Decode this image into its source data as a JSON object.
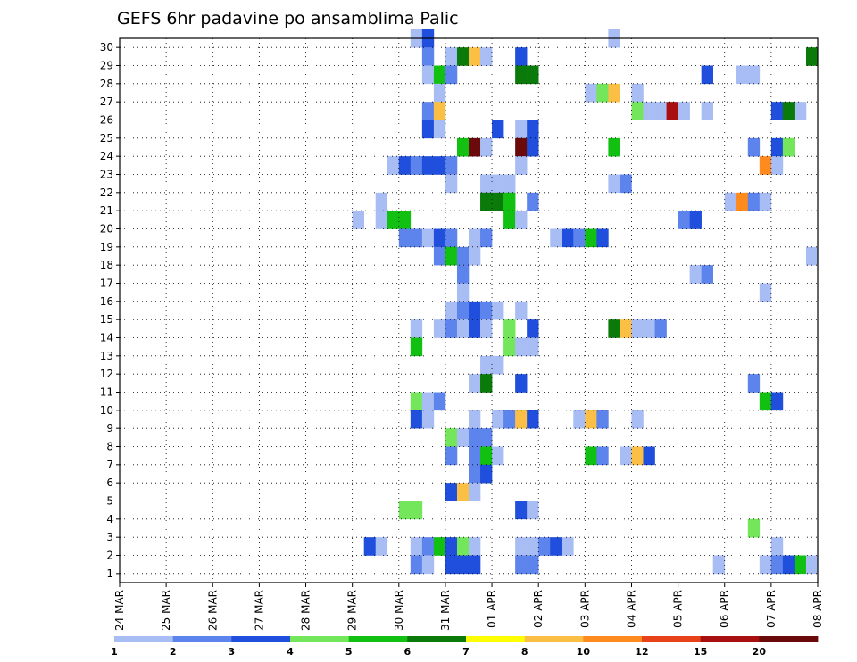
{
  "chart_data": {
    "type": "heatmap",
    "title": "GEFS 6hr padavine po ansamblima Palic",
    "xlabel": "",
    "ylabel": "",
    "x_ticks": [
      "24 MAR",
      "25 MAR",
      "26 MAR",
      "27 MAR",
      "28 MAR",
      "29 MAR",
      "30 MAR",
      "31 MAR",
      "01 APR",
      "02 APR",
      "03 APR",
      "04 APR",
      "05 APR",
      "06 APR",
      "07 APR",
      "08 APR"
    ],
    "y_ticks": [
      1,
      2,
      3,
      4,
      5,
      6,
      7,
      8,
      9,
      10,
      11,
      12,
      13,
      14,
      15,
      16,
      17,
      18,
      19,
      20,
      21,
      22,
      23,
      24,
      25,
      26,
      27,
      28,
      29,
      30
    ],
    "xlim": [
      "24 MAR 00",
      "08 APR 00"
    ],
    "ylim": [
      0,
      30
    ],
    "x_step_hours": 6,
    "grid": true,
    "legend": {
      "placement": "bottom",
      "bounds": [
        "1",
        "2",
        "3",
        "4",
        "5",
        "6",
        "7",
        "8",
        "10",
        "12",
        "15",
        "20"
      ],
      "colors": [
        "#a9bdf5",
        "#5d84ec",
        "#1f4fdc",
        "#73e65c",
        "#11c011",
        "#0a7a0a",
        "#ffff00",
        "#fbbf45",
        "#ff8a1d",
        "#e8421a",
        "#a81010",
        "#6b0a0a"
      ]
    },
    "cells": [
      {
        "x": "30 MAR 06",
        "member": 30,
        "level": 1
      },
      {
        "x": "30 MAR 12",
        "member": 30,
        "level": 3
      },
      {
        "x": "03 APR 12",
        "member": 30,
        "level": 1
      },
      {
        "x": "30 MAR 12",
        "member": 29,
        "level": 2
      },
      {
        "x": "31 MAR 00",
        "member": 29,
        "level": 1
      },
      {
        "x": "31 MAR 06",
        "member": 29,
        "level": 6
      },
      {
        "x": "31 MAR 12",
        "member": 29,
        "level": 8
      },
      {
        "x": "31 MAR 18",
        "member": 29,
        "level": 1
      },
      {
        "x": "01 APR 12",
        "member": 29,
        "level": 3
      },
      {
        "x": "07 APR 18",
        "member": 29,
        "level": 6
      },
      {
        "x": "30 MAR 12",
        "member": 28,
        "level": 1
      },
      {
        "x": "30 MAR 18",
        "member": 28,
        "level": 5
      },
      {
        "x": "31 MAR 00",
        "member": 28,
        "level": 2
      },
      {
        "x": "01 APR 12",
        "member": 28,
        "level": 6
      },
      {
        "x": "01 APR 18",
        "member": 28,
        "level": 6
      },
      {
        "x": "05 APR 12",
        "member": 28,
        "level": 3
      },
      {
        "x": "06 APR 06",
        "member": 28,
        "level": 1
      },
      {
        "x": "06 APR 12",
        "member": 28,
        "level": 1
      },
      {
        "x": "30 MAR 18",
        "member": 27,
        "level": 1
      },
      {
        "x": "03 APR 00",
        "member": 27,
        "level": 1
      },
      {
        "x": "03 APR 06",
        "member": 27,
        "level": 4
      },
      {
        "x": "03 APR 12",
        "member": 27,
        "level": 8
      },
      {
        "x": "04 APR 00",
        "member": 27,
        "level": 1
      },
      {
        "x": "30 MAR 12",
        "member": 26,
        "level": 2
      },
      {
        "x": "30 MAR 18",
        "member": 26,
        "level": 8
      },
      {
        "x": "04 APR 00",
        "member": 26,
        "level": 4
      },
      {
        "x": "04 APR 06",
        "member": 26,
        "level": 1
      },
      {
        "x": "04 APR 12",
        "member": 26,
        "level": 1
      },
      {
        "x": "04 APR 18",
        "member": 26,
        "level": 11
      },
      {
        "x": "05 APR 00",
        "member": 26,
        "level": 1
      },
      {
        "x": "05 APR 12",
        "member": 26,
        "level": 1
      },
      {
        "x": "07 APR 00",
        "member": 26,
        "level": 3
      },
      {
        "x": "07 APR 06",
        "member": 26,
        "level": 6
      },
      {
        "x": "07 APR 12",
        "member": 26,
        "level": 1
      },
      {
        "x": "30 MAR 12",
        "member": 25,
        "level": 3
      },
      {
        "x": "30 MAR 18",
        "member": 25,
        "level": 1
      },
      {
        "x": "01 APR 00",
        "member": 25,
        "level": 3
      },
      {
        "x": "01 APR 12",
        "member": 25,
        "level": 1
      },
      {
        "x": "01 APR 18",
        "member": 25,
        "level": 3
      },
      {
        "x": "31 MAR 06",
        "member": 24,
        "level": 5
      },
      {
        "x": "31 MAR 12",
        "member": 24,
        "level": 12
      },
      {
        "x": "31 MAR 18",
        "member": 24,
        "level": 1
      },
      {
        "x": "01 APR 12",
        "member": 24,
        "level": 12
      },
      {
        "x": "01 APR 18",
        "member": 24,
        "level": 3
      },
      {
        "x": "03 APR 12",
        "member": 24,
        "level": 5
      },
      {
        "x": "06 APR 12",
        "member": 24,
        "level": 2
      },
      {
        "x": "07 APR 00",
        "member": 24,
        "level": 3
      },
      {
        "x": "07 APR 06",
        "member": 24,
        "level": 4
      },
      {
        "x": "29 MAR 18",
        "member": 23,
        "level": 1
      },
      {
        "x": "30 MAR 00",
        "member": 23,
        "level": 3
      },
      {
        "x": "30 MAR 06",
        "member": 23,
        "level": 2
      },
      {
        "x": "30 MAR 12",
        "member": 23,
        "level": 3
      },
      {
        "x": "30 MAR 18",
        "member": 23,
        "level": 3
      },
      {
        "x": "31 MAR 00",
        "member": 23,
        "level": 2
      },
      {
        "x": "01 APR 12",
        "member": 23,
        "level": 1
      },
      {
        "x": "06 APR 18",
        "member": 23,
        "level": 9
      },
      {
        "x": "07 APR 00",
        "member": 23,
        "level": 1
      },
      {
        "x": "31 MAR 00",
        "member": 22,
        "level": 1
      },
      {
        "x": "31 MAR 18",
        "member": 22,
        "level": 1
      },
      {
        "x": "01 APR 00",
        "member": 22,
        "level": 1
      },
      {
        "x": "01 APR 06",
        "member": 22,
        "level": 1
      },
      {
        "x": "03 APR 12",
        "member": 22,
        "level": 1
      },
      {
        "x": "03 APR 18",
        "member": 22,
        "level": 2
      },
      {
        "x": "29 MAR 12",
        "member": 21,
        "level": 1
      },
      {
        "x": "31 MAR 18",
        "member": 21,
        "level": 6
      },
      {
        "x": "01 APR 00",
        "member": 21,
        "level": 6
      },
      {
        "x": "01 APR 06",
        "member": 21,
        "level": 5
      },
      {
        "x": "01 APR 18",
        "member": 21,
        "level": 2
      },
      {
        "x": "06 APR 00",
        "member": 21,
        "level": 1
      },
      {
        "x": "06 APR 06",
        "member": 21,
        "level": 9
      },
      {
        "x": "06 APR 12",
        "member": 21,
        "level": 2
      },
      {
        "x": "06 APR 18",
        "member": 21,
        "level": 1
      },
      {
        "x": "29 MAR 00",
        "member": 20,
        "level": 1
      },
      {
        "x": "29 MAR 12",
        "member": 20,
        "level": 1
      },
      {
        "x": "29 MAR 18",
        "member": 20,
        "level": 5
      },
      {
        "x": "30 MAR 00",
        "member": 20,
        "level": 5
      },
      {
        "x": "01 APR 06",
        "member": 20,
        "level": 5
      },
      {
        "x": "01 APR 12",
        "member": 20,
        "level": 1
      },
      {
        "x": "05 APR 00",
        "member": 20,
        "level": 2
      },
      {
        "x": "05 APR 06",
        "member": 20,
        "level": 3
      },
      {
        "x": "30 MAR 00",
        "member": 19,
        "level": 2
      },
      {
        "x": "30 MAR 06",
        "member": 19,
        "level": 2
      },
      {
        "x": "30 MAR 12",
        "member": 19,
        "level": 1
      },
      {
        "x": "30 MAR 18",
        "member": 19,
        "level": 3
      },
      {
        "x": "31 MAR 00",
        "member": 19,
        "level": 2
      },
      {
        "x": "31 MAR 12",
        "member": 19,
        "level": 1
      },
      {
        "x": "31 MAR 18",
        "member": 19,
        "level": 2
      },
      {
        "x": "02 APR 06",
        "member": 19,
        "level": 1
      },
      {
        "x": "02 APR 12",
        "member": 19,
        "level": 3
      },
      {
        "x": "02 APR 18",
        "member": 19,
        "level": 2
      },
      {
        "x": "03 APR 00",
        "member": 19,
        "level": 5
      },
      {
        "x": "03 APR 06",
        "member": 19,
        "level": 3
      },
      {
        "x": "30 MAR 18",
        "member": 18,
        "level": 2
      },
      {
        "x": "31 MAR 00",
        "member": 18,
        "level": 5
      },
      {
        "x": "31 MAR 06",
        "member": 18,
        "level": 2
      },
      {
        "x": "31 MAR 12",
        "member": 18,
        "level": 1
      },
      {
        "x": "07 APR 18",
        "member": 18,
        "level": 1
      },
      {
        "x": "31 MAR 06",
        "member": 17,
        "level": 2
      },
      {
        "x": "05 APR 06",
        "member": 17,
        "level": 1
      },
      {
        "x": "05 APR 12",
        "member": 17,
        "level": 2
      },
      {
        "x": "31 MAR 06",
        "member": 16,
        "level": 1
      },
      {
        "x": "06 APR 18",
        "member": 16,
        "level": 1
      },
      {
        "x": "31 MAR 00",
        "member": 15,
        "level": 1
      },
      {
        "x": "31 MAR 06",
        "member": 15,
        "level": 2
      },
      {
        "x": "31 MAR 12",
        "member": 15,
        "level": 3
      },
      {
        "x": "31 MAR 18",
        "member": 15,
        "level": 2
      },
      {
        "x": "01 APR 00",
        "member": 15,
        "level": 1
      },
      {
        "x": "01 APR 12",
        "member": 15,
        "level": 1
      },
      {
        "x": "30 MAR 06",
        "member": 14,
        "level": 1
      },
      {
        "x": "30 MAR 18",
        "member": 14,
        "level": 1
      },
      {
        "x": "31 MAR 00",
        "member": 14,
        "level": 2
      },
      {
        "x": "31 MAR 06",
        "member": 14,
        "level": 1
      },
      {
        "x": "31 MAR 12",
        "member": 14,
        "level": 3
      },
      {
        "x": "31 MAR 18",
        "member": 14,
        "level": 1
      },
      {
        "x": "01 APR 06",
        "member": 14,
        "level": 4
      },
      {
        "x": "01 APR 18",
        "member": 14,
        "level": 3
      },
      {
        "x": "03 APR 12",
        "member": 14,
        "level": 6
      },
      {
        "x": "03 APR 18",
        "member": 14,
        "level": 8
      },
      {
        "x": "04 APR 00",
        "member": 14,
        "level": 1
      },
      {
        "x": "04 APR 06",
        "member": 14,
        "level": 1
      },
      {
        "x": "04 APR 12",
        "member": 14,
        "level": 2
      },
      {
        "x": "30 MAR 06",
        "member": 13,
        "level": 5
      },
      {
        "x": "01 APR 06",
        "member": 13,
        "level": 4
      },
      {
        "x": "01 APR 12",
        "member": 13,
        "level": 1
      },
      {
        "x": "01 APR 18",
        "member": 13,
        "level": 1
      },
      {
        "x": "31 MAR 18",
        "member": 12,
        "level": 1
      },
      {
        "x": "01 APR 00",
        "member": 12,
        "level": 1
      },
      {
        "x": "31 MAR 12",
        "member": 11,
        "level": 1
      },
      {
        "x": "31 MAR 18",
        "member": 11,
        "level": 6
      },
      {
        "x": "01 APR 12",
        "member": 11,
        "level": 3
      },
      {
        "x": "06 APR 12",
        "member": 11,
        "level": 2
      },
      {
        "x": "30 MAR 06",
        "member": 10,
        "level": 4
      },
      {
        "x": "30 MAR 12",
        "member": 10,
        "level": 1
      },
      {
        "x": "30 MAR 18",
        "member": 10,
        "level": 2
      },
      {
        "x": "06 APR 18",
        "member": 10,
        "level": 5
      },
      {
        "x": "07 APR 00",
        "member": 10,
        "level": 3
      },
      {
        "x": "30 MAR 06",
        "member": 9,
        "level": 3
      },
      {
        "x": "30 MAR 12",
        "member": 9,
        "level": 1
      },
      {
        "x": "31 MAR 12",
        "member": 9,
        "level": 1
      },
      {
        "x": "01 APR 00",
        "member": 9,
        "level": 1
      },
      {
        "x": "01 APR 06",
        "member": 9,
        "level": 2
      },
      {
        "x": "01 APR 12",
        "member": 9,
        "level": 8
      },
      {
        "x": "01 APR 18",
        "member": 9,
        "level": 3
      },
      {
        "x": "02 APR 18",
        "member": 9,
        "level": 1
      },
      {
        "x": "03 APR 00",
        "member": 9,
        "level": 8
      },
      {
        "x": "03 APR 06",
        "member": 9,
        "level": 2
      },
      {
        "x": "04 APR 00",
        "member": 9,
        "level": 1
      },
      {
        "x": "31 MAR 00",
        "member": 8,
        "level": 4
      },
      {
        "x": "31 MAR 06",
        "member": 8,
        "level": 1
      },
      {
        "x": "31 MAR 12",
        "member": 8,
        "level": 2
      },
      {
        "x": "31 MAR 18",
        "member": 8,
        "level": 2
      },
      {
        "x": "31 MAR 00",
        "member": 7,
        "level": 2
      },
      {
        "x": "31 MAR 12",
        "member": 7,
        "level": 2
      },
      {
        "x": "31 MAR 18",
        "member": 7,
        "level": 5
      },
      {
        "x": "01 APR 00",
        "member": 7,
        "level": 1
      },
      {
        "x": "03 APR 00",
        "member": 7,
        "level": 5
      },
      {
        "x": "03 APR 06",
        "member": 7,
        "level": 2
      },
      {
        "x": "03 APR 18",
        "member": 7,
        "level": 1
      },
      {
        "x": "04 APR 00",
        "member": 7,
        "level": 8
      },
      {
        "x": "04 APR 06",
        "member": 7,
        "level": 3
      },
      {
        "x": "31 MAR 12",
        "member": 6,
        "level": 2
      },
      {
        "x": "31 MAR 18",
        "member": 6,
        "level": 3
      },
      {
        "x": "31 MAR 00",
        "member": 5,
        "level": 3
      },
      {
        "x": "31 MAR 06",
        "member": 5,
        "level": 8
      },
      {
        "x": "31 MAR 12",
        "member": 5,
        "level": 1
      },
      {
        "x": "30 MAR 00",
        "member": 4,
        "level": 4
      },
      {
        "x": "30 MAR 06",
        "member": 4,
        "level": 4
      },
      {
        "x": "01 APR 12",
        "member": 4,
        "level": 3
      },
      {
        "x": "01 APR 18",
        "member": 4,
        "level": 1
      },
      {
        "x": "06 APR 12",
        "member": 3,
        "level": 4
      },
      {
        "x": "29 MAR 06",
        "member": 2,
        "level": 3
      },
      {
        "x": "29 MAR 12",
        "member": 2,
        "level": 1
      },
      {
        "x": "30 MAR 06",
        "member": 2,
        "level": 1
      },
      {
        "x": "30 MAR 12",
        "member": 2,
        "level": 2
      },
      {
        "x": "30 MAR 18",
        "member": 2,
        "level": 5
      },
      {
        "x": "31 MAR 00",
        "member": 2,
        "level": 3
      },
      {
        "x": "31 MAR 06",
        "member": 2,
        "level": 4
      },
      {
        "x": "31 MAR 12",
        "member": 2,
        "level": 1
      },
      {
        "x": "01 APR 12",
        "member": 2,
        "level": 1
      },
      {
        "x": "01 APR 18",
        "member": 2,
        "level": 1
      },
      {
        "x": "02 APR 00",
        "member": 2,
        "level": 2
      },
      {
        "x": "02 APR 06",
        "member": 2,
        "level": 3
      },
      {
        "x": "02 APR 12",
        "member": 2,
        "level": 1
      },
      {
        "x": "07 APR 00",
        "member": 2,
        "level": 1
      },
      {
        "x": "30 MAR 06",
        "member": 1,
        "level": 2
      },
      {
        "x": "30 MAR 12",
        "member": 1,
        "level": 1
      },
      {
        "x": "31 MAR 00",
        "member": 1,
        "level": 3
      },
      {
        "x": "31 MAR 06",
        "member": 1,
        "level": 3
      },
      {
        "x": "31 MAR 12",
        "member": 1,
        "level": 3
      },
      {
        "x": "01 APR 12",
        "member": 1,
        "level": 2
      },
      {
        "x": "01 APR 18",
        "member": 1,
        "level": 2
      },
      {
        "x": "05 APR 18",
        "member": 1,
        "level": 1
      },
      {
        "x": "06 APR 18",
        "member": 1,
        "level": 1
      },
      {
        "x": "07 APR 00",
        "member": 1,
        "level": 2
      },
      {
        "x": "07 APR 06",
        "member": 1,
        "level": 3
      },
      {
        "x": "07 APR 12",
        "member": 1,
        "level": 5
      },
      {
        "x": "07 APR 18",
        "member": 1,
        "level": 1
      }
    ]
  }
}
